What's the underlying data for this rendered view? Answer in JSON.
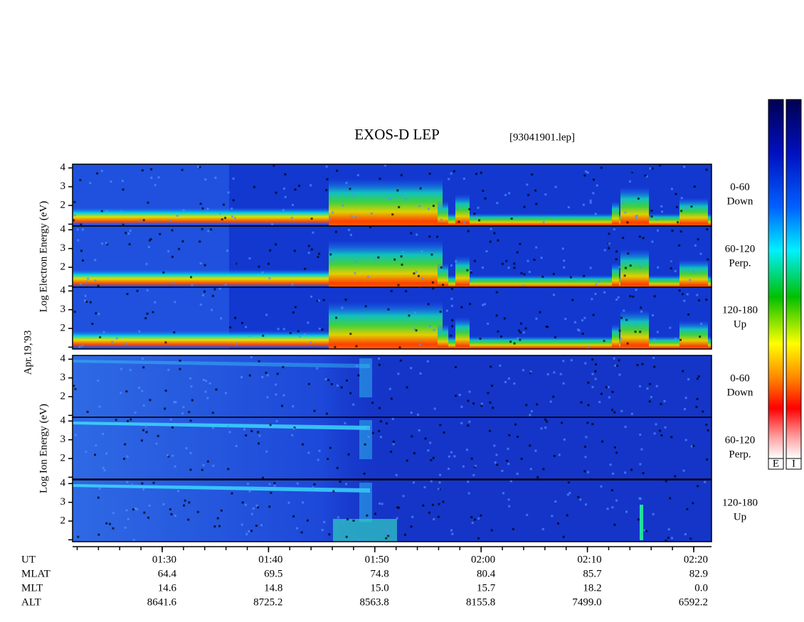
{
  "header": {
    "title": "EXOS-D LEP",
    "file": "[93041901.lep]"
  },
  "date": "Apr.19,'93",
  "ylim": [
    0.9,
    4.2
  ],
  "yticks": [
    2,
    3,
    4
  ],
  "minor_yticks": [
    1
  ],
  "groups": [
    {
      "label": "Log Electron Energy (eV)",
      "panels": [
        {
          "angle": "0-60",
          "direction": "Down"
        },
        {
          "angle": "60-120",
          "direction": "Perp."
        },
        {
          "angle": "120-180",
          "direction": "Up"
        }
      ]
    },
    {
      "label": "Log Ion Energy (eV)",
      "panels": [
        {
          "angle": "0-60",
          "direction": "Down"
        },
        {
          "angle": "60-120",
          "direction": "Perp."
        },
        {
          "angle": "120-180",
          "direction": "Up"
        }
      ]
    }
  ],
  "colorbars": [
    "E",
    "I"
  ],
  "table": {
    "rows": [
      {
        "label": "UT",
        "values": [
          "01:30",
          "01:40",
          "01:50",
          "02:00",
          "02:10",
          "02:20"
        ]
      },
      {
        "label": "MLAT",
        "values": [
          "64.4",
          "69.5",
          "74.8",
          "80.4",
          "85.7",
          "82.9"
        ]
      },
      {
        "label": "MLT",
        "values": [
          "14.6",
          "14.8",
          "15.0",
          "15.7",
          "18.2",
          "0.0"
        ]
      },
      {
        "label": "ALT",
        "values": [
          "8641.6",
          "8725.2",
          "8563.8",
          "8155.8",
          "7499.0",
          "6592.2"
        ]
      }
    ]
  }
}
